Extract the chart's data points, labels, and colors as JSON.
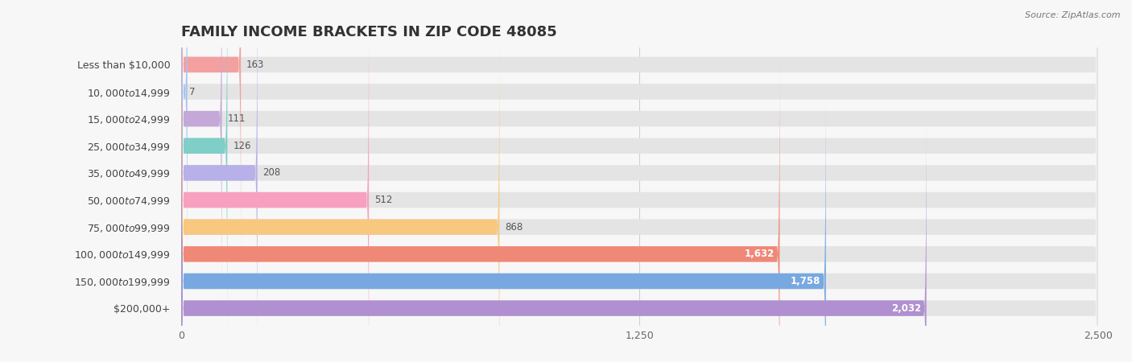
{
  "title": "FAMILY INCOME BRACKETS IN ZIP CODE 48085",
  "source": "Source: ZipAtlas.com",
  "categories": [
    "Less than $10,000",
    "$10,000 to $14,999",
    "$15,000 to $24,999",
    "$25,000 to $34,999",
    "$35,000 to $49,999",
    "$50,000 to $74,999",
    "$75,000 to $99,999",
    "$100,000 to $149,999",
    "$150,000 to $199,999",
    "$200,000+"
  ],
  "values": [
    163,
    7,
    111,
    126,
    208,
    512,
    868,
    1632,
    1758,
    2032
  ],
  "bar_colors": [
    "#F4A0A0",
    "#A8C4F0",
    "#C4A8D8",
    "#80CEC8",
    "#B8B0E8",
    "#F8A0C0",
    "#F8C880",
    "#F08878",
    "#78A8E0",
    "#B090D0"
  ],
  "background_color": "#f7f7f7",
  "bar_background_color": "#e4e4e4",
  "xlim": [
    0,
    2500
  ],
  "xticks": [
    0,
    1250,
    2500
  ],
  "title_fontsize": 13,
  "label_fontsize": 9,
  "value_fontsize": 8.5,
  "bar_height": 0.58,
  "value_inside_threshold": 1200
}
